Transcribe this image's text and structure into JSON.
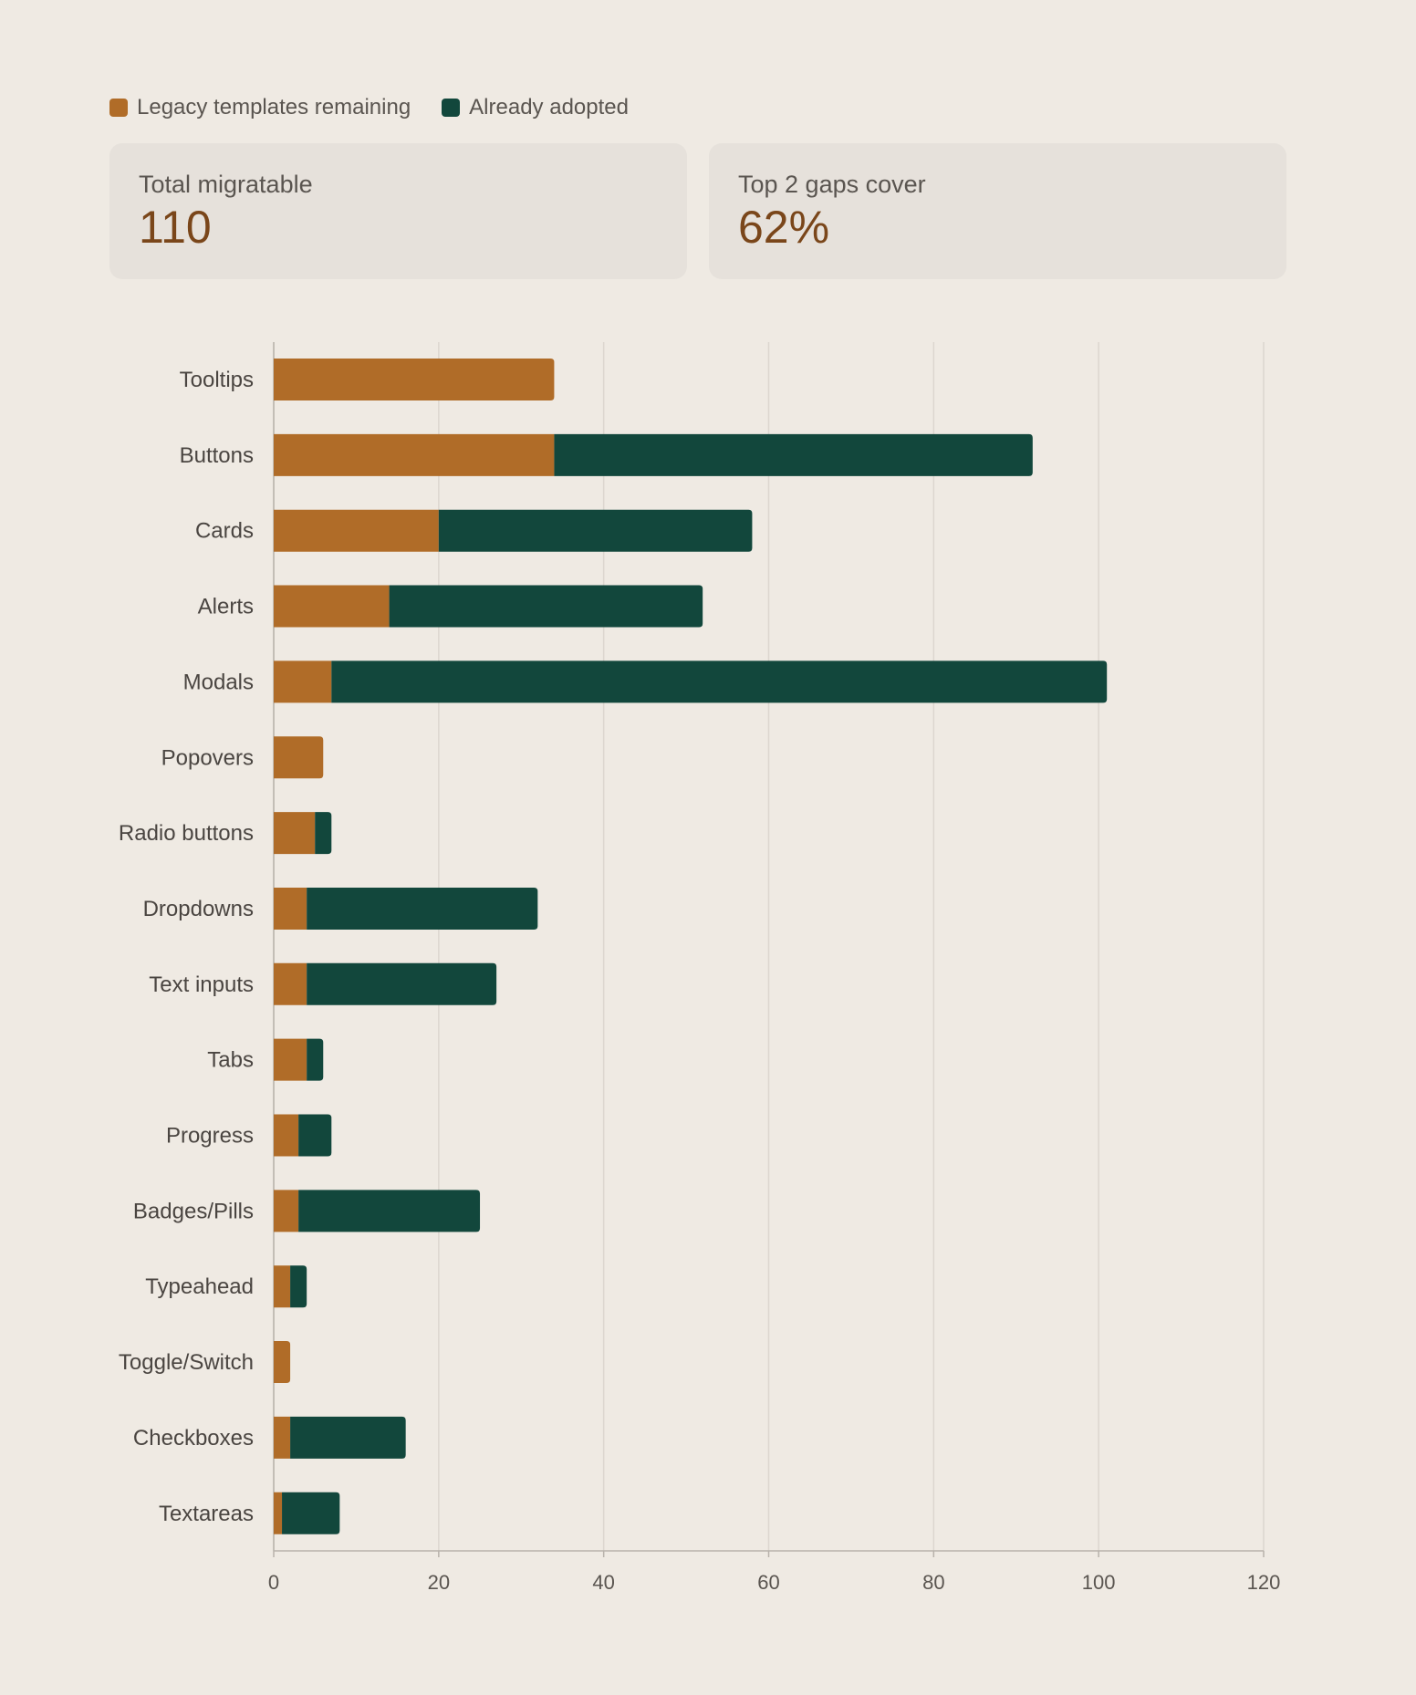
{
  "legend": {
    "items": [
      {
        "label": "Legacy templates remaining",
        "color": "#b06c28"
      },
      {
        "label": "Already adopted",
        "color": "#12473c"
      }
    ]
  },
  "kpis": [
    {
      "label": "Total migratable",
      "value": "110"
    },
    {
      "label": "Top 2 gaps cover",
      "value": "62%"
    }
  ],
  "chart_data": {
    "type": "bar",
    "orientation": "horizontal",
    "stacked": true,
    "categories": [
      "Tooltips",
      "Buttons",
      "Cards",
      "Alerts",
      "Modals",
      "Popovers",
      "Radio buttons",
      "Dropdowns",
      "Text inputs",
      "Tabs",
      "Progress",
      "Badges/Pills",
      "Typeahead",
      "Toggle/Switch",
      "Checkboxes",
      "Textareas"
    ],
    "series": [
      {
        "name": "Legacy templates remaining",
        "color": "#b06c28",
        "values": [
          34,
          34,
          20,
          14,
          7,
          6,
          5,
          4,
          4,
          4,
          3,
          3,
          2,
          2,
          2,
          1
        ]
      },
      {
        "name": "Already adopted",
        "color": "#12473c",
        "values": [
          0,
          58,
          38,
          38,
          94,
          0,
          2,
          28,
          23,
          2,
          4,
          22,
          2,
          0,
          14,
          7
        ]
      }
    ],
    "xlim": [
      0,
      120
    ],
    "xticks": [
      0,
      20,
      40,
      60,
      80,
      100,
      120
    ],
    "grid": true,
    "legend_position": "top-left"
  }
}
